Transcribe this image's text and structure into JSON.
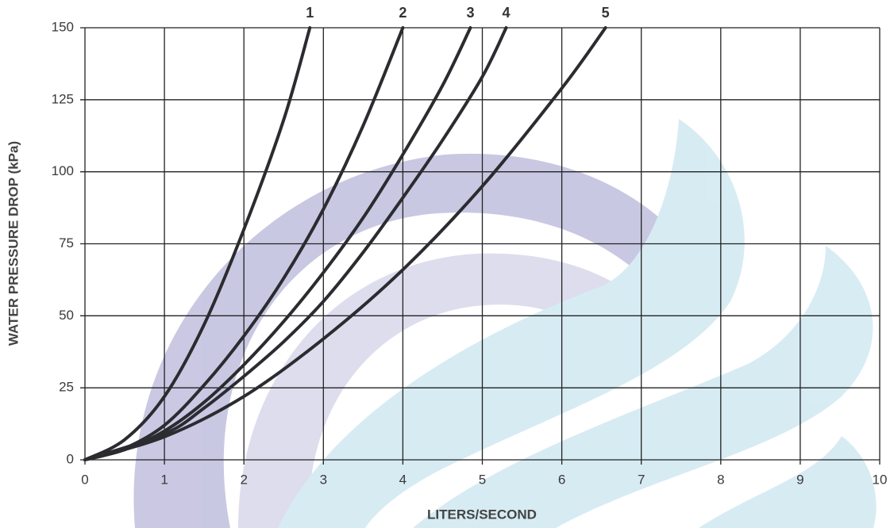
{
  "chart_data": {
    "type": "line",
    "x_label": "LITERS/SECOND",
    "y_label": "WATER PRESSURE DROP (kPa)",
    "xlim": [
      0,
      10
    ],
    "ylim": [
      0,
      150
    ],
    "xticks": [
      0,
      1,
      2,
      3,
      4,
      5,
      6,
      7,
      8,
      9,
      10
    ],
    "yticks": [
      0,
      25,
      50,
      75,
      100,
      125,
      150
    ],
    "grid": true,
    "series": [
      {
        "name": "1",
        "color": "#2b2b30",
        "x": [
          0,
          0.5,
          1,
          1.5,
          2,
          2.5,
          2.83
        ],
        "values": [
          0,
          7,
          22,
          47,
          80,
          118,
          150
        ]
      },
      {
        "name": "2",
        "color": "#2b2b30",
        "x": [
          0,
          0.5,
          1,
          1.5,
          2,
          2.5,
          3,
          3.5,
          4
        ],
        "values": [
          0,
          4,
          12,
          26,
          43,
          63,
          87,
          116,
          150
        ]
      },
      {
        "name": "3",
        "color": "#2b2b30",
        "x": [
          0,
          0.5,
          1,
          1.5,
          2,
          2.5,
          3,
          3.5,
          4,
          4.5,
          4.85
        ],
        "values": [
          0,
          3.5,
          10,
          20,
          33,
          48,
          65,
          84,
          106,
          130,
          150
        ]
      },
      {
        "name": "4",
        "color": "#2b2b30",
        "x": [
          0,
          1,
          1.5,
          2,
          2.5,
          3,
          3.5,
          4,
          4.5,
          5,
          5.3
        ],
        "values": [
          0,
          9,
          18,
          29,
          41,
          55,
          72,
          91,
          111,
          133,
          150
        ]
      },
      {
        "name": "5",
        "color": "#2b2b30",
        "x": [
          0,
          1,
          2,
          3,
          4,
          5,
          6,
          6.55
        ],
        "values": [
          0,
          8,
          22,
          42,
          66,
          95,
          129,
          150
        ]
      }
    ]
  }
}
